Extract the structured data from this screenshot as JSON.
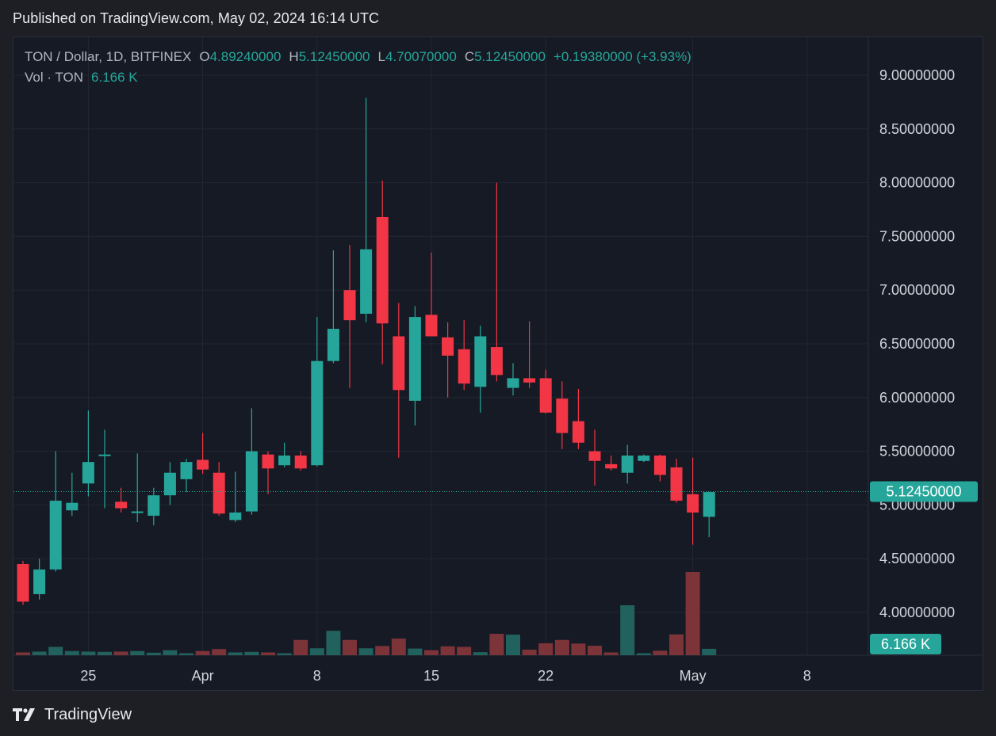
{
  "header": {
    "published": "Published on TradingView.com, May 02, 2024 16:14 UTC"
  },
  "legend": {
    "symbol": "TON / Dollar, 1D, BITFINEX",
    "o_label": "O",
    "o_value": "4.89240000",
    "h_label": "H",
    "h_value": "5.12450000",
    "l_label": "L",
    "l_value": "4.70070000",
    "c_label": "C",
    "c_value": "5.12450000",
    "change": "+0.19380000 (+3.93%)",
    "vol_label": "Vol · TON",
    "vol_value": "6.166 K"
  },
  "footer": {
    "brand": "TradingView"
  },
  "colors": {
    "up": "#26a69a",
    "down": "#f23645",
    "vol_up": "#22625e",
    "vol_down": "#7d3439",
    "grid": "#232733",
    "text": "#d1d4dc"
  },
  "chart_data": {
    "type": "candlestick",
    "x_ticks": [
      {
        "label": "25",
        "day": 25
      },
      {
        "label": "Apr",
        "day": 32
      },
      {
        "label": "8",
        "day": 39
      },
      {
        "label": "15",
        "day": 46
      },
      {
        "label": "22",
        "day": 53
      },
      {
        "label": "May",
        "day": 62
      },
      {
        "label": "8",
        "day": 69
      }
    ],
    "y_ticks": [
      "9.00000000",
      "8.50000000",
      "8.00000000",
      "7.50000000",
      "7.00000000",
      "6.50000000",
      "6.00000000",
      "5.50000000",
      "5.00000000",
      "4.50000000",
      "4.00000000"
    ],
    "ylim": [
      3.6,
      9.25
    ],
    "last_price": {
      "value": 5.1245,
      "label": "5.12450000"
    },
    "last_volume": {
      "label": "6.166 K"
    },
    "candles": [
      {
        "day": 21,
        "o": 4.45,
        "h": 4.48,
        "l": 4.07,
        "c": 4.1,
        "v": 1.0
      },
      {
        "day": 22,
        "o": 4.17,
        "h": 4.5,
        "l": 4.12,
        "c": 4.4,
        "v": 1.3
      },
      {
        "day": 23,
        "o": 4.4,
        "h": 5.5,
        "l": 4.38,
        "c": 5.04,
        "v": 3.0
      },
      {
        "day": 24,
        "o": 4.95,
        "h": 5.3,
        "l": 4.9,
        "c": 5.02,
        "v": 1.5
      },
      {
        "day": 25,
        "o": 5.2,
        "h": 5.88,
        "l": 5.08,
        "c": 5.4,
        "v": 1.3
      },
      {
        "day": 26,
        "o": 5.47,
        "h": 5.7,
        "l": 4.97,
        "c": 5.47,
        "v": 1.2
      },
      {
        "day": 27,
        "o": 5.03,
        "h": 5.16,
        "l": 4.93,
        "c": 4.97,
        "v": 1.3
      },
      {
        "day": 28,
        "o": 4.93,
        "h": 5.48,
        "l": 4.84,
        "c": 4.94,
        "v": 1.5
      },
      {
        "day": 29,
        "o": 4.9,
        "h": 5.16,
        "l": 4.81,
        "c": 5.09,
        "v": 0.9
      },
      {
        "day": 30,
        "o": 5.09,
        "h": 5.4,
        "l": 5.0,
        "c": 5.3,
        "v": 1.8
      },
      {
        "day": 31,
        "o": 5.24,
        "h": 5.43,
        "l": 5.12,
        "c": 5.4,
        "v": 0.7
      },
      {
        "day": 32,
        "o": 5.42,
        "h": 5.67,
        "l": 5.29,
        "c": 5.33,
        "v": 1.5
      },
      {
        "day": 33,
        "o": 5.3,
        "h": 5.4,
        "l": 4.9,
        "c": 4.92,
        "v": 2.2
      },
      {
        "day": 34,
        "o": 4.86,
        "h": 5.31,
        "l": 4.84,
        "c": 4.93,
        "v": 1.0
      },
      {
        "day": 35,
        "o": 4.94,
        "h": 5.9,
        "l": 4.91,
        "c": 5.5,
        "v": 1.2
      },
      {
        "day": 36,
        "o": 5.47,
        "h": 5.5,
        "l": 5.1,
        "c": 5.34,
        "v": 1.0
      },
      {
        "day": 37,
        "o": 5.37,
        "h": 5.58,
        "l": 5.35,
        "c": 5.46,
        "v": 0.7
      },
      {
        "day": 38,
        "o": 5.46,
        "h": 5.5,
        "l": 5.32,
        "c": 5.34,
        "v": 5.5
      },
      {
        "day": 39,
        "o": 5.37,
        "h": 6.75,
        "l": 5.36,
        "c": 6.34,
        "v": 2.5
      },
      {
        "day": 40,
        "o": 6.34,
        "h": 7.37,
        "l": 6.32,
        "c": 6.64,
        "v": 8.8
      },
      {
        "day": 41,
        "o": 7.0,
        "h": 7.42,
        "l": 6.09,
        "c": 6.72,
        "v": 5.5
      },
      {
        "day": 42,
        "o": 6.78,
        "h": 8.79,
        "l": 6.7,
        "c": 7.38,
        "v": 2.5
      },
      {
        "day": 43,
        "o": 7.68,
        "h": 8.02,
        "l": 6.31,
        "c": 6.69,
        "v": 3.3
      },
      {
        "day": 44,
        "o": 6.57,
        "h": 6.88,
        "l": 5.44,
        "c": 6.07,
        "v": 6.0
      },
      {
        "day": 45,
        "o": 5.97,
        "h": 6.85,
        "l": 5.74,
        "c": 6.75,
        "v": 2.4
      },
      {
        "day": 46,
        "o": 6.77,
        "h": 7.35,
        "l": 6.58,
        "c": 6.57,
        "v": 1.8
      },
      {
        "day": 47,
        "o": 6.56,
        "h": 6.7,
        "l": 6.0,
        "c": 6.39,
        "v": 3.2
      },
      {
        "day": 48,
        "o": 6.45,
        "h": 6.72,
        "l": 6.07,
        "c": 6.13,
        "v": 3.0
      },
      {
        "day": 49,
        "o": 6.1,
        "h": 6.67,
        "l": 5.86,
        "c": 6.57,
        "v": 1.1
      },
      {
        "day": 50,
        "o": 6.47,
        "h": 8.0,
        "l": 6.15,
        "c": 6.21,
        "v": 7.7
      },
      {
        "day": 51,
        "o": 6.09,
        "h": 6.32,
        "l": 6.02,
        "c": 6.18,
        "v": 7.4
      },
      {
        "day": 52,
        "o": 6.18,
        "h": 6.71,
        "l": 6.09,
        "c": 6.14,
        "v": 2.0
      },
      {
        "day": 53,
        "o": 6.18,
        "h": 6.26,
        "l": 5.85,
        "c": 5.86,
        "v": 4.3
      },
      {
        "day": 54,
        "o": 5.99,
        "h": 6.15,
        "l": 5.52,
        "c": 5.67,
        "v": 5.5
      },
      {
        "day": 55,
        "o": 5.78,
        "h": 6.08,
        "l": 5.52,
        "c": 5.58,
        "v": 4.2
      },
      {
        "day": 56,
        "o": 5.5,
        "h": 5.7,
        "l": 5.18,
        "c": 5.41,
        "v": 3.4
      },
      {
        "day": 57,
        "o": 5.38,
        "h": 5.46,
        "l": 5.32,
        "c": 5.34,
        "v": 1.0
      },
      {
        "day": 58,
        "o": 5.3,
        "h": 5.56,
        "l": 5.2,
        "c": 5.46,
        "v": 18.0
      },
      {
        "day": 59,
        "o": 5.41,
        "h": 5.47,
        "l": 5.4,
        "c": 5.46,
        "v": 0.7
      },
      {
        "day": 60,
        "o": 5.46,
        "h": 5.47,
        "l": 5.22,
        "c": 5.28,
        "v": 1.6
      },
      {
        "day": 61,
        "o": 5.35,
        "h": 5.43,
        "l": 5.02,
        "c": 5.04,
        "v": 7.5
      },
      {
        "day": 62,
        "o": 5.1,
        "h": 5.44,
        "l": 4.63,
        "c": 4.93,
        "v": 30.0
      },
      {
        "day": 63,
        "o": 4.89,
        "h": 5.12,
        "l": 4.7,
        "c": 5.12,
        "v": 2.3
      }
    ]
  }
}
